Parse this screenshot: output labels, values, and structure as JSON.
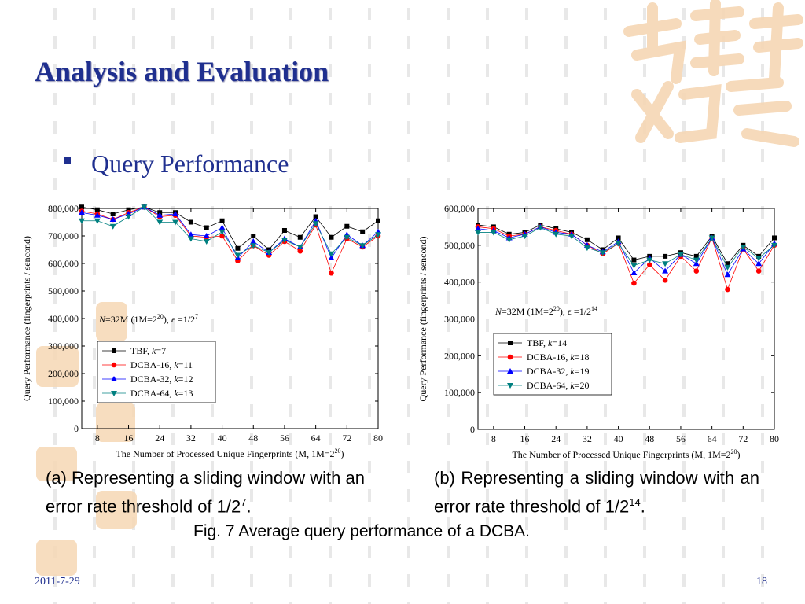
{
  "slide": {
    "title": "Analysis and Evaluation",
    "bullet": "Query Performance",
    "caption_a_text": "(a)  Representing  a  sliding  window with an error rate threshold of  1/2",
    "caption_a_exp": "7",
    "caption_b_text": "(b)  Representing  a  sliding  window with an error rate threshold of  1/2",
    "caption_b_exp": "14",
    "figure_caption": "Fig. 7  Average query performance of a DCBA.",
    "date": "2011-7-29",
    "page": "18"
  },
  "colors": {
    "title": "#1f2f8f",
    "tbf": "#000000",
    "dcba16": "#ff0000",
    "dcba32": "#0000ff",
    "dcba64": "#008080",
    "watermark": "#f6d7b4"
  },
  "chart_data": [
    {
      "type": "line",
      "xlabel": "The Number of Processed Unique Fingerprints (M, 1M=2",
      "xlabel_exp": "20",
      "xlabel_end": ")",
      "ylabel": "Query Performance (fingerprints / sencond)",
      "xlim": [
        4,
        80
      ],
      "ylim": [
        0,
        800000
      ],
      "xticks": [
        8,
        16,
        24,
        32,
        40,
        48,
        56,
        64,
        72,
        80
      ],
      "yticks": [
        0,
        100000,
        200000,
        300000,
        400000,
        500000,
        600000,
        700000,
        800000
      ],
      "yticklabels": [
        "0",
        "100,000",
        "200,000",
        "300,000",
        "400,000",
        "500,000",
        "600,000",
        "700,000",
        "800,000"
      ],
      "annotation": {
        "n": "N",
        "mid": "=32M (1M=2",
        "exp1": "20",
        "eps": "), ε  =1/2",
        "exp2": "7"
      },
      "legend_position": "lower-left",
      "x": [
        4,
        8,
        12,
        16,
        20,
        24,
        28,
        32,
        36,
        40,
        44,
        48,
        52,
        56,
        60,
        64,
        68,
        72,
        76,
        80
      ],
      "series": [
        {
          "name": "TBF, k=7",
          "name_a": "TBF, ",
          "k": "k",
          "kv": "=7",
          "marker": "square",
          "values": [
            805000,
            795000,
            780000,
            795000,
            805000,
            785000,
            785000,
            750000,
            730000,
            755000,
            655000,
            700000,
            650000,
            720000,
            695000,
            770000,
            695000,
            735000,
            715000,
            755000
          ]
        },
        {
          "name": "DCBA-16, k=11",
          "name_a": "DCBA-16, ",
          "k": "k",
          "kv": "=11",
          "marker": "circle",
          "values": [
            790000,
            780000,
            760000,
            785000,
            805000,
            770000,
            775000,
            700000,
            695000,
            700000,
            610000,
            665000,
            630000,
            680000,
            645000,
            740000,
            565000,
            690000,
            660000,
            700000
          ]
        },
        {
          "name": "DCBA-32, k=12",
          "name_a": "DCBA-32, ",
          "k": "k",
          "kv": "=12",
          "marker": "triangle-up",
          "values": [
            785000,
            775000,
            760000,
            780000,
            805000,
            775000,
            780000,
            705000,
            700000,
            730000,
            620000,
            680000,
            640000,
            690000,
            660000,
            755000,
            620000,
            705000,
            665000,
            715000
          ]
        },
        {
          "name": "DCBA-64, k=13",
          "name_a": "DCBA-64, ",
          "k": "k",
          "kv": "=13",
          "marker": "triangle-down",
          "values": [
            755000,
            755000,
            735000,
            770000,
            805000,
            750000,
            750000,
            690000,
            680000,
            715000,
            630000,
            665000,
            640000,
            685000,
            660000,
            745000,
            635000,
            695000,
            665000,
            705000
          ]
        }
      ]
    },
    {
      "type": "line",
      "xlabel": "The Number of Processed Unique Fingerprints (M, 1M=2",
      "xlabel_exp": "20",
      "xlabel_end": ")",
      "ylabel": "Query Performance (fingerprints / sencond)",
      "xlim": [
        4,
        80
      ],
      "ylim": [
        0,
        600000
      ],
      "xticks": [
        8,
        16,
        24,
        32,
        40,
        48,
        56,
        64,
        72,
        80
      ],
      "yticks": [
        0,
        100000,
        200000,
        300000,
        400000,
        500000,
        600000
      ],
      "yticklabels": [
        "0",
        "100,000",
        "200,000",
        "300,000",
        "400,000",
        "500,000",
        "600,000"
      ],
      "annotation": {
        "n": "N",
        "mid": "=32M (1M=2",
        "exp1": "20",
        "eps": "), ε  =1/2",
        "exp2": "14"
      },
      "legend_position": "lower-left",
      "x": [
        4,
        8,
        12,
        16,
        20,
        24,
        28,
        32,
        36,
        40,
        44,
        48,
        52,
        56,
        60,
        64,
        68,
        72,
        76,
        80
      ],
      "series": [
        {
          "name": "TBF, k=14",
          "name_a": "TBF, ",
          "k": "k",
          "kv": "=14",
          "marker": "square",
          "values": [
            555000,
            550000,
            530000,
            535000,
            555000,
            545000,
            535000,
            515000,
            488000,
            520000,
            460000,
            470000,
            470000,
            480000,
            470000,
            525000,
            450000,
            500000,
            470000,
            520000
          ]
        },
        {
          "name": "DCBA-16, k=18",
          "name_a": "DCBA-16, ",
          "k": "k",
          "kv": "=18",
          "marker": "circle",
          "values": [
            550000,
            545000,
            525000,
            530000,
            550000,
            540000,
            530000,
            500000,
            477000,
            505000,
            397000,
            447000,
            405000,
            470000,
            430000,
            520000,
            380000,
            490000,
            430000,
            500000
          ]
        },
        {
          "name": "DCBA-32, k=19",
          "name_a": "DCBA-32, ",
          "k": "k",
          "kv": "=19",
          "marker": "triangle-up",
          "values": [
            545000,
            540000,
            520000,
            530000,
            550000,
            535000,
            530000,
            500000,
            482000,
            510000,
            425000,
            465000,
            430000,
            475000,
            450000,
            520000,
            420000,
            490000,
            450000,
            505000
          ]
        },
        {
          "name": "DCBA-64, k=20",
          "name_a": "DCBA-64, ",
          "k": "k",
          "kv": "=20",
          "marker": "triangle-down",
          "values": [
            535000,
            535000,
            515000,
            525000,
            548000,
            530000,
            525000,
            493000,
            480000,
            505000,
            445000,
            460000,
            450000,
            475000,
            460000,
            520000,
            440000,
            495000,
            465000,
            500000
          ]
        }
      ]
    }
  ]
}
